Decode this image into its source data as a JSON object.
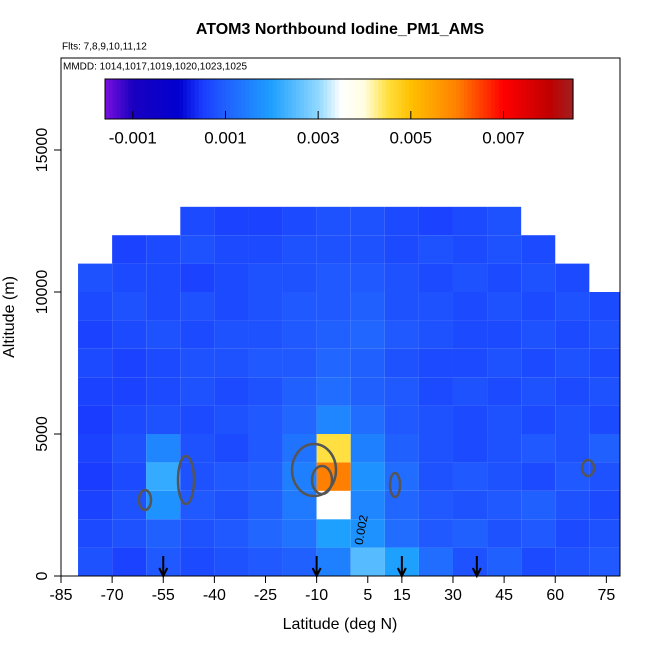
{
  "chart_data": {
    "type": "heatmap",
    "title": "ATOM3 Northbound Iodine_PM1_AMS",
    "annotations": [
      "Flts: 7,8,9,10,11,12",
      "MMDD: 1014,1017,1019,1020,1023,1025"
    ],
    "contour_label": "0.002",
    "x_label": "Latitude (deg N)",
    "y_label": "Altitude (m)",
    "xlim": [
      -85,
      79
    ],
    "ylim": [
      0,
      18240
    ],
    "xticks": [
      -85,
      -70,
      -55,
      -40,
      -25,
      -10,
      5,
      15,
      30,
      45,
      60,
      75
    ],
    "yticks": [
      0,
      5000,
      10000,
      15000
    ],
    "x_bins": [
      -80,
      -70,
      -60,
      -50,
      -40,
      -30,
      -20,
      -10,
      0,
      10,
      20,
      30,
      40,
      50,
      60,
      70,
      80
    ],
    "y_bins": [
      0,
      1000,
      2000,
      3000,
      4000,
      5000,
      6000,
      7000,
      8000,
      9000,
      10000,
      11000,
      12000,
      13000
    ],
    "z": [
      [
        0.0008,
        0.0006,
        0.0009,
        0.0007,
        0.0008,
        0.0009,
        0.001,
        0.0015,
        0.0025,
        0.002,
        0.0012,
        0.0008,
        0.001,
        0.0007,
        0.0008,
        0.0009
      ],
      [
        0.0007,
        0.0008,
        0.001,
        0.0008,
        0.0009,
        0.0011,
        0.0013,
        0.002,
        0.0018,
        0.0012,
        0.0009,
        0.001,
        0.0008,
        0.0009,
        0.0007,
        0.0008
      ],
      [
        0.0006,
        0.0008,
        0.0018,
        0.0009,
        0.0008,
        0.001,
        0.0014,
        0.0035,
        0.0016,
        0.0011,
        0.0009,
        0.0008,
        0.0009,
        0.001,
        0.0008,
        0.0007
      ],
      [
        0.0005,
        0.0007,
        0.0022,
        0.0008,
        0.0009,
        0.001,
        0.0015,
        0.006,
        0.0018,
        0.0012,
        0.0008,
        0.0009,
        0.0008,
        0.0007,
        0.0009,
        0.0008
      ],
      [
        0.0006,
        0.0008,
        0.0016,
        0.0008,
        0.0007,
        0.0009,
        0.0013,
        0.0045,
        0.0015,
        0.001,
        0.0008,
        0.0007,
        0.0008,
        0.0009,
        0.0008,
        0.001
      ],
      [
        0.0005,
        0.0007,
        0.0008,
        0.0007,
        0.0008,
        0.0009,
        0.0011,
        0.0016,
        0.0012,
        0.0009,
        0.0008,
        0.0007,
        0.0008,
        0.0007,
        0.0008,
        0.0007
      ],
      [
        0.0006,
        0.0006,
        0.0007,
        0.0008,
        0.0007,
        0.0008,
        0.001,
        0.0012,
        0.001,
        0.0009,
        0.0007,
        0.0008,
        0.0007,
        0.0008,
        0.0007,
        0.0008
      ],
      [
        0.0007,
        0.0006,
        0.0007,
        0.0008,
        0.0008,
        0.0009,
        0.0009,
        0.0011,
        0.001,
        0.0008,
        0.0007,
        0.0007,
        0.0008,
        0.0007,
        0.0008,
        0.0007
      ],
      [
        0.0006,
        0.0007,
        0.0008,
        0.0007,
        0.0008,
        0.0008,
        0.0009,
        0.001,
        0.0011,
        0.0009,
        0.0008,
        0.0007,
        0.0007,
        0.0008,
        0.0007,
        0.0008
      ],
      [
        0.0007,
        0.0008,
        0.0007,
        0.0008,
        0.0007,
        0.0008,
        0.0009,
        0.0009,
        0.001,
        0.0008,
        0.0008,
        0.0007,
        0.0008,
        0.0007,
        0.0008,
        0.0007
      ],
      [
        0.0008,
        0.0007,
        0.0007,
        0.0006,
        0.0007,
        0.0008,
        0.0008,
        0.0009,
        0.0009,
        0.0008,
        0.0007,
        0.0008,
        0.0007,
        0.0008,
        0.0007,
        null
      ],
      [
        null,
        0.0006,
        0.0007,
        0.0008,
        0.0007,
        0.0007,
        0.0008,
        0.0008,
        0.0008,
        0.0007,
        0.0008,
        0.0007,
        0.0008,
        0.0007,
        null,
        null
      ],
      [
        null,
        null,
        null,
        0.0007,
        0.0006,
        0.0006,
        0.0007,
        0.0008,
        0.0008,
        0.0007,
        0.0006,
        0.0007,
        0.0008,
        null,
        null,
        null
      ]
    ],
    "colorbar_lim": [
      -0.0016,
      0.0085
    ],
    "colorbar_ticks": [
      -0.001,
      0.001,
      0.003,
      0.005,
      0.007
    ],
    "color_stops": [
      [
        -0.0016,
        "#7a10e0"
      ],
      [
        -0.001,
        "#1a00c0"
      ],
      [
        0,
        "#0000d0"
      ],
      [
        0.0005,
        "#1a3cff"
      ],
      [
        0.001,
        "#2060ff"
      ],
      [
        0.002,
        "#1ea0ff"
      ],
      [
        0.003,
        "#90d8ff"
      ],
      [
        0.0035,
        "#ffffff"
      ],
      [
        0.004,
        "#fffde0"
      ],
      [
        0.0045,
        "#ffe040"
      ],
      [
        0.005,
        "#ffc000"
      ],
      [
        0.006,
        "#ff8000"
      ],
      [
        0.007,
        "#ff0000"
      ],
      [
        0.008,
        "#c00000"
      ],
      [
        0.0085,
        "#a02020"
      ]
    ],
    "markers": [
      -55,
      -10,
      15,
      37
    ]
  }
}
